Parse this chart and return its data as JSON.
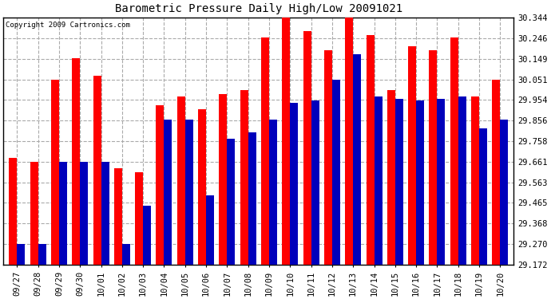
{
  "title": "Barometric Pressure Daily High/Low 20091021",
  "copyright": "Copyright 2009 Cartronics.com",
  "dates": [
    "09/27",
    "09/28",
    "09/29",
    "09/30",
    "10/01",
    "10/02",
    "10/03",
    "10/04",
    "10/05",
    "10/06",
    "10/07",
    "10/08",
    "10/09",
    "10/10",
    "10/11",
    "10/12",
    "10/13",
    "10/14",
    "10/15",
    "10/16",
    "10/17",
    "10/18",
    "10/19",
    "10/20"
  ],
  "highs": [
    29.68,
    29.66,
    30.05,
    30.15,
    30.07,
    29.63,
    29.61,
    29.93,
    29.97,
    29.91,
    29.98,
    30.0,
    30.25,
    30.35,
    30.28,
    30.19,
    30.35,
    30.26,
    30.0,
    30.21,
    30.19,
    30.25,
    29.97,
    30.05
  ],
  "lows": [
    29.27,
    29.27,
    29.66,
    29.66,
    29.66,
    29.27,
    29.45,
    29.86,
    29.86,
    29.5,
    29.77,
    29.8,
    29.86,
    29.94,
    29.95,
    30.05,
    30.17,
    29.97,
    29.96,
    29.95,
    29.96,
    29.97,
    29.82,
    29.86
  ],
  "ylim_min": 29.172,
  "ylim_max": 30.344,
  "yticks": [
    29.172,
    29.27,
    29.368,
    29.465,
    29.563,
    29.661,
    29.758,
    29.856,
    29.954,
    30.051,
    30.149,
    30.246,
    30.344
  ],
  "high_color": "#ff0000",
  "low_color": "#0000bb",
  "bg_color": "#ffffff",
  "grid_color": "#aaaaaa",
  "bar_width": 0.38
}
